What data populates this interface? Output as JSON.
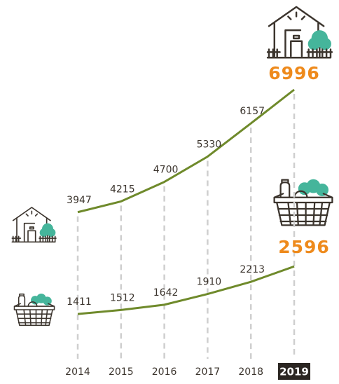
{
  "chart_data": {
    "type": "line",
    "categories": [
      "2014",
      "2015",
      "2016",
      "2017",
      "2018",
      "2019"
    ],
    "series": [
      {
        "color": "#6f8a2b",
        "values": [
          3947,
          4215,
          4700,
          5330,
          6157,
          6996
        ]
      },
      {
        "color": "#6f8a2b",
        "values": [
          1411,
          1512,
          1642,
          1910,
          2213,
          2596
        ]
      }
    ],
    "highlight_color": "#ee8a1c"
  }
}
